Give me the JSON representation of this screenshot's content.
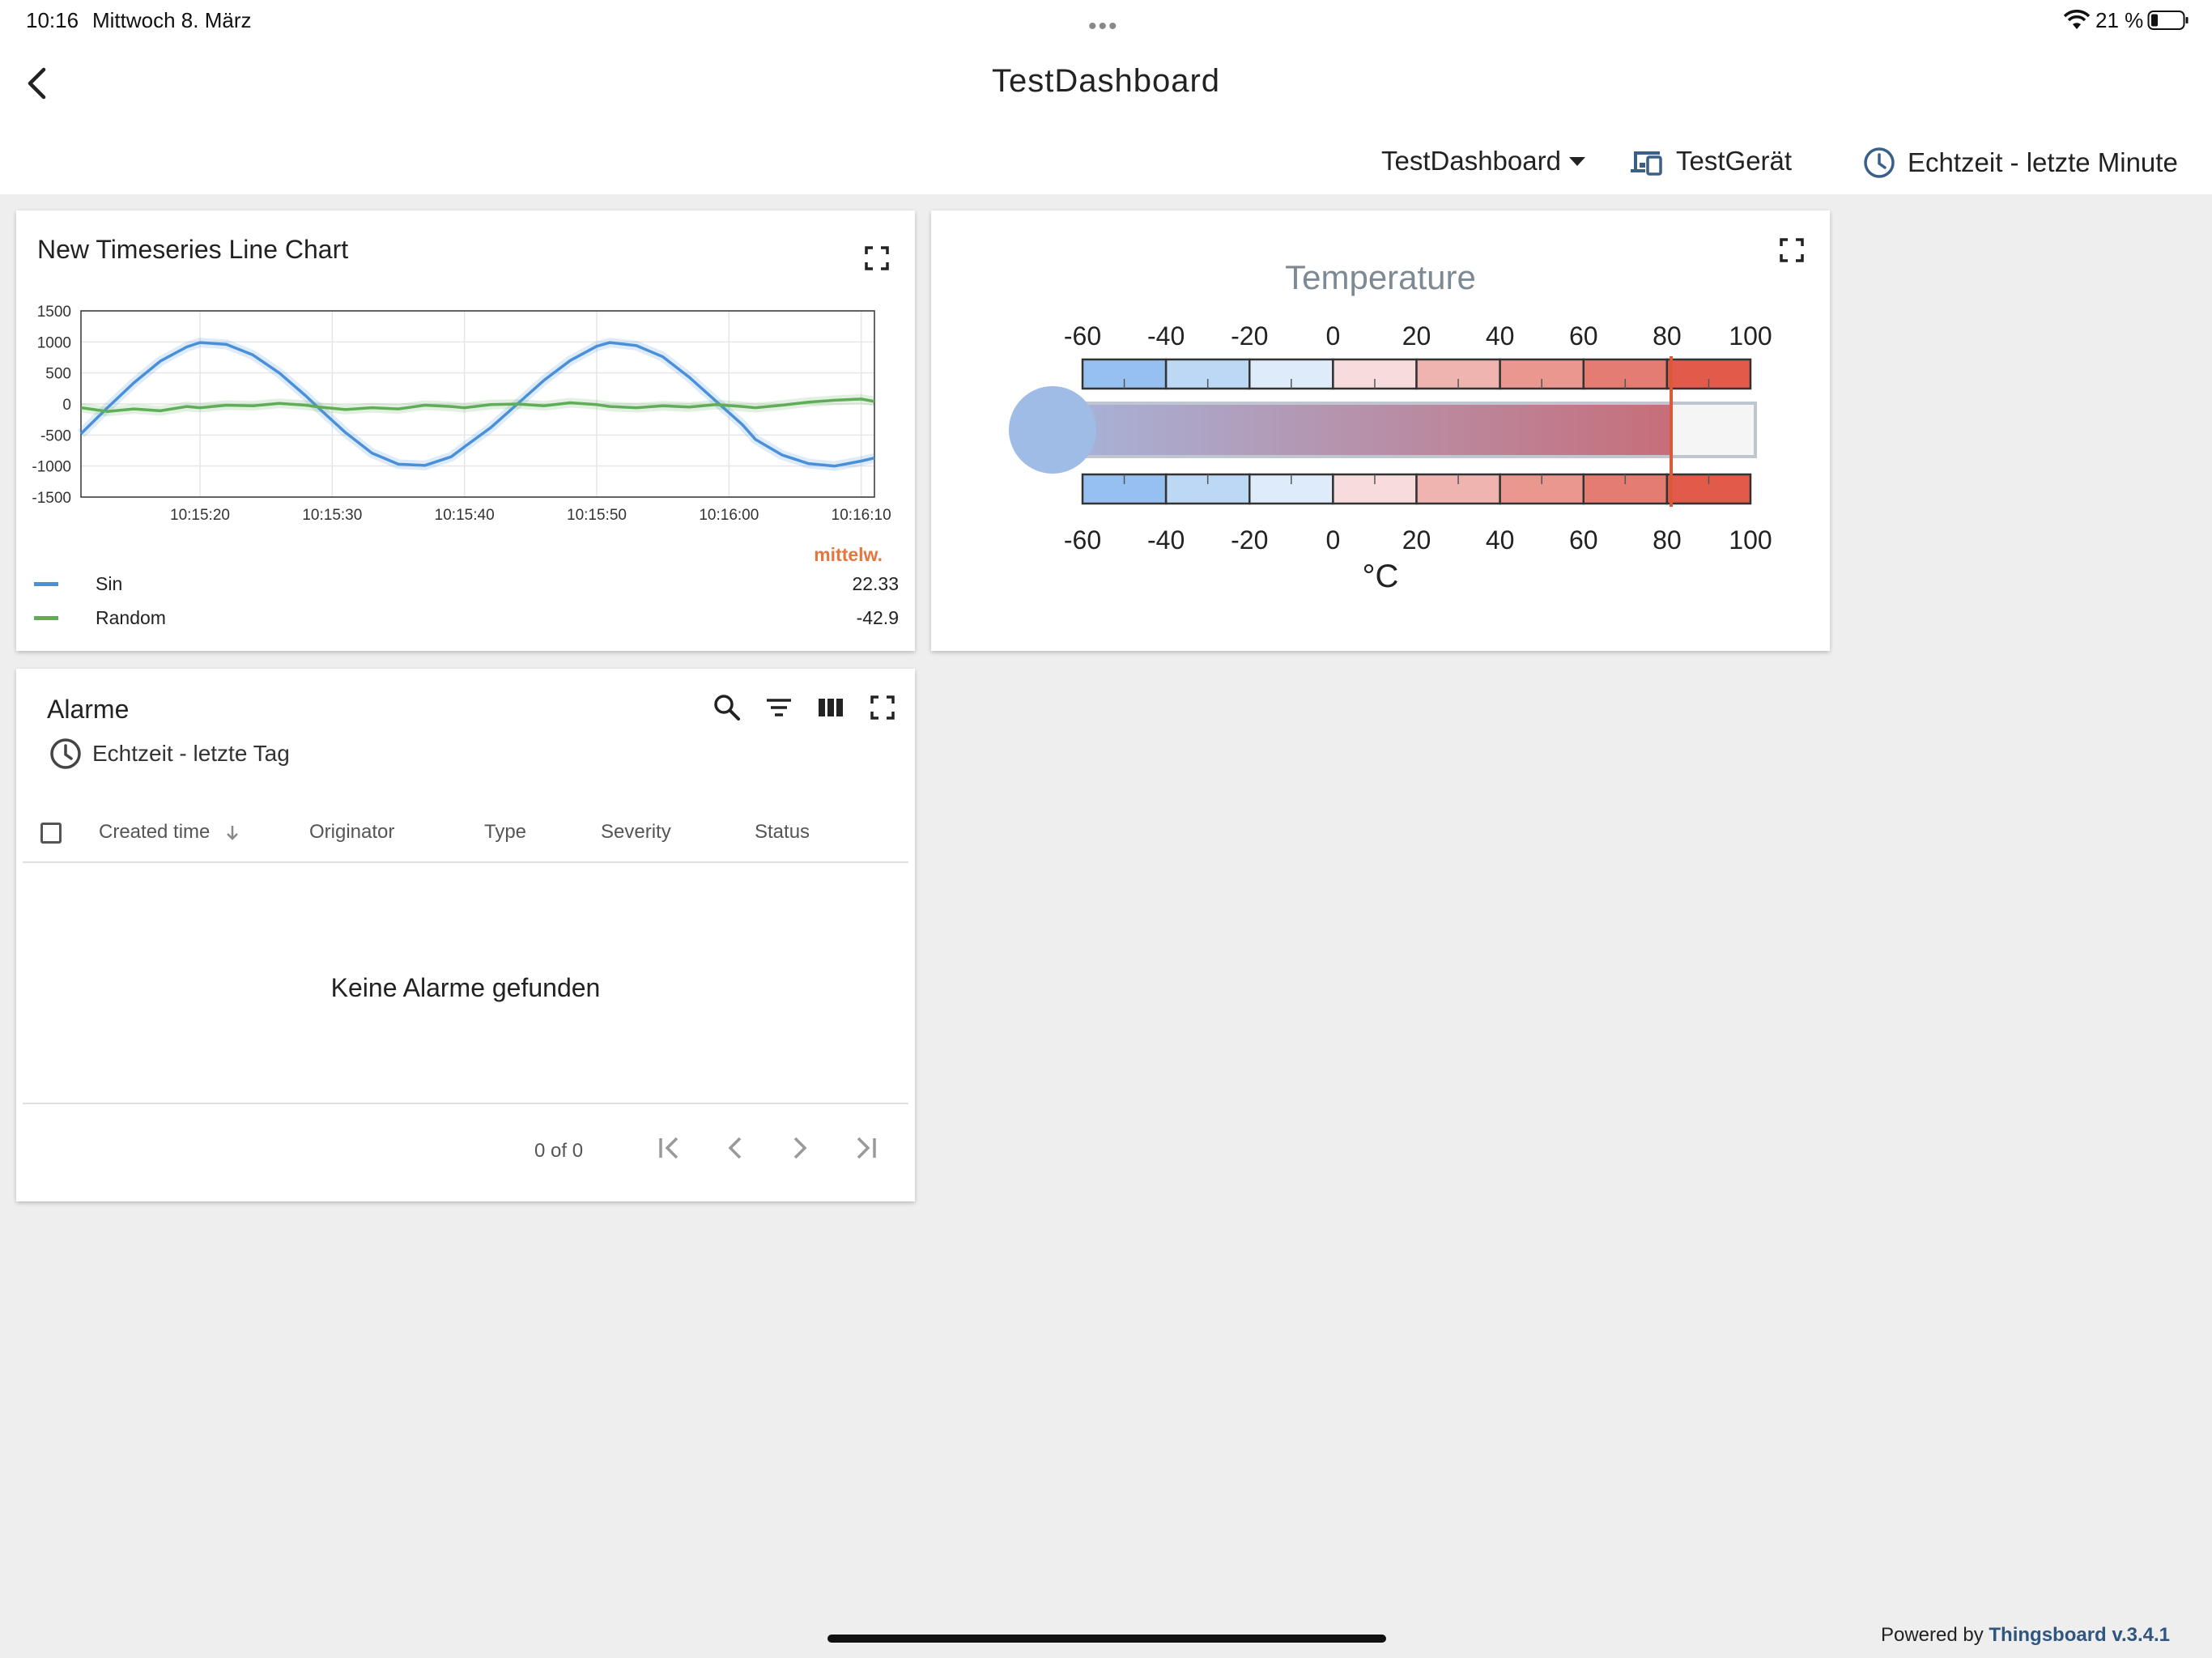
{
  "status_bar": {
    "time": "10:16",
    "date": "Mittwoch 8. März",
    "battery": "21 %"
  },
  "header": {
    "title": "TestDashboard",
    "dashboard_select": "TestDashboard",
    "device": "TestGerät",
    "timewindow": "Echtzeit - letzte Minute"
  },
  "chart_widget": {
    "title": "New Timeseries Line Chart",
    "legend_header": "mittelw.",
    "legend": [
      {
        "name": "Sin",
        "value": "22.33",
        "color": "#4a90d9"
      },
      {
        "name": "Random",
        "value": "-42.9",
        "color": "#5fad56"
      }
    ]
  },
  "chart_data": {
    "type": "line",
    "title": "",
    "xlabel": "",
    "ylabel": "",
    "ylim": [
      -1500,
      1500
    ],
    "yticks": [
      "1500",
      "1000",
      "500",
      "0",
      "-500",
      "-1000",
      "-1500"
    ],
    "xticks": [
      "10:15:20",
      "10:15:30",
      "10:15:40",
      "10:15:50",
      "10:16:00",
      "10:16:10"
    ],
    "x_seconds": [
      0,
      2,
      4,
      6,
      8,
      9,
      11,
      13,
      15,
      17,
      18,
      20,
      22,
      24,
      26,
      28,
      29,
      31,
      33,
      35,
      37,
      39,
      40,
      42,
      44,
      46,
      48,
      50,
      51,
      53,
      55,
      57,
      59,
      60
    ],
    "series": [
      {
        "name": "Sin",
        "color": "#4a90d9",
        "values": [
          -480,
          -60,
          340,
          690,
          920,
          990,
          960,
          790,
          500,
          130,
          -70,
          -460,
          -790,
          -970,
          -990,
          -850,
          -690,
          -380,
          0,
          380,
          700,
          930,
          990,
          940,
          760,
          430,
          50,
          -330,
          -570,
          -820,
          -960,
          -1000,
          -920,
          -870
        ]
      },
      {
        "name": "Random",
        "color": "#5fad56",
        "values": [
          -60,
          -120,
          -80,
          -110,
          -40,
          -60,
          -20,
          -30,
          10,
          -20,
          -50,
          -90,
          -60,
          -80,
          -20,
          -40,
          -60,
          -10,
          0,
          -30,
          20,
          -10,
          -40,
          -60,
          -30,
          -50,
          -10,
          -40,
          -60,
          -20,
          30,
          60,
          80,
          40
        ]
      }
    ]
  },
  "thermometer": {
    "title": "Temperature",
    "unit": "°C",
    "min": -60,
    "max": 100,
    "value": 81,
    "ticks": [
      "-60",
      "-40",
      "-20",
      "0",
      "20",
      "40",
      "60",
      "80",
      "100"
    ],
    "band_colors": [
      "#95c0ef",
      "#bcd8f5",
      "#ddebfa",
      "#f8dcdc",
      "#f0b4b0",
      "#ea9790",
      "#e57c72",
      "#e25a4a"
    ],
    "bulb_color": "#9fbce6",
    "fill_start": "#a4b8e0",
    "fill_end": "#c76e7a",
    "marker_color": "#d9593a"
  },
  "alarm_widget": {
    "title": "Alarme",
    "timewindow": "Echtzeit - letzte Tag",
    "columns": [
      "Created time",
      "Originator",
      "Type",
      "Severity",
      "Status"
    ],
    "empty_message": "Keine Alarme gefunden",
    "pager": "0 of 0"
  },
  "footer": {
    "powered_by": "Powered by",
    "brand": "Thingsboard v.3.4.1"
  }
}
